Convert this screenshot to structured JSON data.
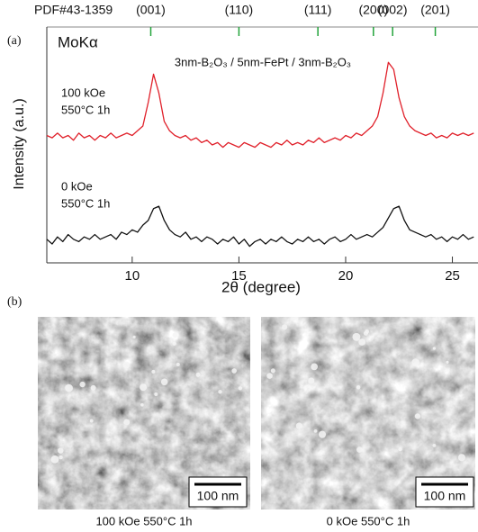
{
  "chart_data": {
    "type": "line",
    "x_label": "2θ (degree)",
    "y_label": "Intensity (a.u.)",
    "panel_label": "(a)",
    "reference": {
      "name": "PDF#43-1359",
      "labels": [
        "(001)",
        "(110)",
        "(111)",
        "(200)",
        "(002)",
        "(201)"
      ],
      "x": [
        10.87,
        15.0,
        18.7,
        21.3,
        22.2,
        24.2
      ],
      "color": "#22a33a"
    },
    "annotations": [
      "MoKα",
      "3nm-B₂O₃ / 5nm-FePt / 3nm-B₂O₃",
      "550°C 1h",
      "550°C 1h"
    ],
    "xlim": [
      6,
      26.2
    ],
    "ylim": [
      0,
      100
    ],
    "xticks": [
      10,
      15,
      20,
      25
    ],
    "x": [
      6,
      6.25,
      6.5,
      6.75,
      7,
      7.25,
      7.5,
      7.75,
      8,
      8.25,
      8.5,
      8.75,
      9,
      9.25,
      9.5,
      9.75,
      10,
      10.25,
      10.5,
      10.75,
      11,
      11.25,
      11.5,
      11.75,
      12,
      12.25,
      12.5,
      12.75,
      13,
      13.25,
      13.5,
      13.75,
      14,
      14.25,
      14.5,
      14.75,
      15,
      15.25,
      15.5,
      15.75,
      16,
      16.25,
      16.5,
      16.75,
      17,
      17.25,
      17.5,
      17.75,
      18,
      18.25,
      18.5,
      18.75,
      19,
      19.25,
      19.5,
      19.75,
      20,
      20.25,
      20.5,
      20.75,
      21,
      21.25,
      21.5,
      21.75,
      22,
      22.25,
      22.5,
      22.75,
      23,
      23.25,
      23.5,
      23.75,
      24,
      24.25,
      24.5,
      24.75,
      25,
      25.25,
      25.5,
      25.75,
      26
    ],
    "series": [
      {
        "name": "100 kOe",
        "color": "#e0202a",
        "values": [
          54,
          53,
          55,
          53,
          54,
          52,
          55,
          53,
          54,
          52,
          54,
          53,
          55,
          53,
          54,
          55,
          54,
          56,
          58,
          68,
          80,
          72,
          60,
          56,
          54,
          53,
          54,
          52,
          53,
          51,
          52,
          50,
          51,
          49,
          51,
          50,
          49,
          51,
          50,
          49,
          51,
          50,
          49,
          51,
          50,
          52,
          50,
          51,
          50,
          52,
          51,
          53,
          51,
          52,
          53,
          52,
          54,
          53,
          55,
          54,
          56,
          58,
          62,
          72,
          85,
          82,
          70,
          62,
          58,
          56,
          55,
          54,
          55,
          53,
          54,
          53,
          55,
          54,
          55,
          54,
          55
        ]
      },
      {
        "name": "0 kOe",
        "color": "#111111",
        "values": [
          10,
          8,
          11,
          9,
          12,
          10,
          9,
          11,
          10,
          12,
          10,
          11,
          12,
          10,
          13,
          12,
          14,
          13,
          16,
          18,
          23,
          24,
          18,
          14,
          12,
          11,
          13,
          10,
          11,
          9,
          11,
          10,
          8,
          10,
          9,
          11,
          8,
          10,
          7,
          9,
          10,
          8,
          10,
          9,
          11,
          9,
          8,
          10,
          9,
          11,
          9,
          10,
          8,
          10,
          11,
          9,
          10,
          12,
          10,
          11,
          12,
          11,
          13,
          15,
          19,
          23,
          24,
          18,
          14,
          13,
          12,
          11,
          12,
          10,
          11,
          9,
          11,
          10,
          12,
          10,
          11
        ]
      }
    ]
  },
  "panel_b": {
    "label": "(b)",
    "images": [
      {
        "scale_bar": "100 nm",
        "caption": "100 kOe 550°C 1h"
      },
      {
        "scale_bar": "100 nm",
        "caption": "0 kOe 550°C 1h"
      }
    ]
  }
}
